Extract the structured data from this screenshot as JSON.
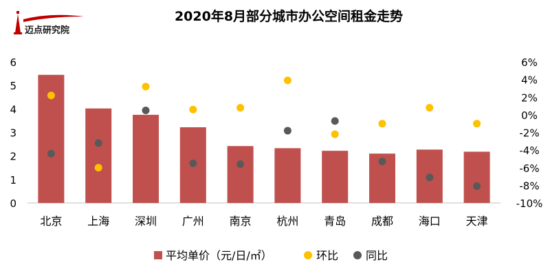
{
  "logo": {
    "brand_text": "迈点研究院"
  },
  "chart_data": {
    "type": "bar",
    "title": "2020年8月部分城市办公空间租金走势",
    "categories": [
      "北京",
      "上海",
      "深圳",
      "广州",
      "南京",
      "杭州",
      "青岛",
      "成都",
      "海口",
      "天津"
    ],
    "series": [
      {
        "name": "平均单价（元/日/㎡）",
        "type": "bar",
        "axis": "left",
        "color": "#C0504D",
        "values": [
          5.45,
          4.02,
          3.75,
          3.22,
          2.42,
          2.33,
          2.22,
          2.1,
          2.27,
          2.18
        ]
      },
      {
        "name": "环比",
        "type": "scatter",
        "axis": "right",
        "color": "#FFC000",
        "values": [
          2.2,
          -6.0,
          3.2,
          0.6,
          0.8,
          3.9,
          -2.2,
          -1.0,
          0.8,
          -1.0
        ]
      },
      {
        "name": "同比",
        "type": "scatter",
        "axis": "right",
        "color": "#595959",
        "values": [
          -4.4,
          -3.2,
          0.5,
          -5.5,
          -5.6,
          -1.8,
          -0.7,
          -5.3,
          -7.1,
          -8.1
        ]
      }
    ],
    "left_axis": {
      "min": 0,
      "max": 6,
      "ticks": [
        "0",
        "1",
        "2",
        "3",
        "4",
        "5",
        "6"
      ]
    },
    "right_axis": {
      "min": -10,
      "max": 6,
      "ticks": [
        "-10%",
        "-8%",
        "-6%",
        "-4%",
        "-2%",
        "0%",
        "2%",
        "4%",
        "6%"
      ]
    },
    "legend_position": "bottom"
  }
}
